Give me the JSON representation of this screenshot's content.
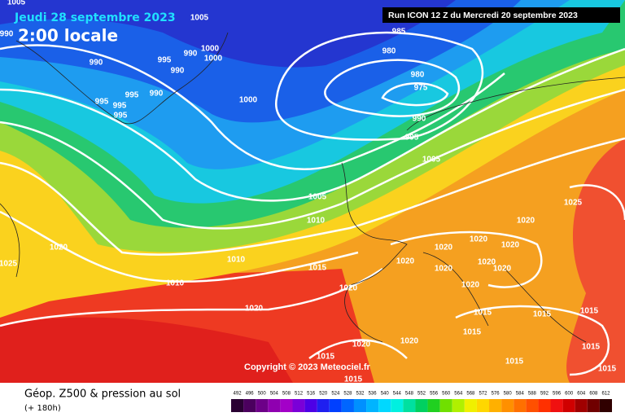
{
  "header": {
    "date": "Jeudi 28 septembre 2023",
    "time": "2:00 locale",
    "run": "Run ICON 12 Z du Mercredi 20 septembre 2023"
  },
  "copyright": "Copyright © 2023 Meteociel.fr",
  "footer": {
    "title": "Géop. Z500 & pression au sol",
    "lead": "(+ 180h)"
  },
  "isobar_labels": [
    "1005",
    "990",
    "1005",
    "990",
    "995",
    "990",
    "1000",
    "1000",
    "990",
    "995",
    "995",
    "995",
    "990",
    "995",
    "1000",
    "985",
    "980",
    "980",
    "975",
    "990",
    "995",
    "1005",
    "1005",
    "1010",
    "1020",
    "1025",
    "1010",
    "1015",
    "1010",
    "1020",
    "1020",
    "1020",
    "1020",
    "1020",
    "1020",
    "1020",
    "1025",
    "1020",
    "1020",
    "1020",
    "1020",
    "1015",
    "1015",
    "1015",
    "1015",
    "1020",
    "1020",
    "1015",
    "1015",
    "1015",
    "1015",
    "1015"
  ],
  "scale": {
    "values": [
      492,
      496,
      500,
      504,
      508,
      512,
      516,
      520,
      524,
      528,
      532,
      536,
      540,
      544,
      548,
      552,
      556,
      560,
      564,
      568,
      572,
      576,
      580,
      584,
      588,
      592,
      596,
      600,
      604,
      608,
      612
    ],
    "colors": [
      "#2a0033",
      "#4b005e",
      "#6d0088",
      "#8f00b0",
      "#a300c8",
      "#7a00d8",
      "#4d00e6",
      "#1f1ff0",
      "#0040ff",
      "#0066ff",
      "#0090ff",
      "#00b4ff",
      "#00d8ff",
      "#00f0e0",
      "#00e0a0",
      "#00d060",
      "#20d020",
      "#70e000",
      "#b0f000",
      "#f0f000",
      "#ffd700",
      "#ffb000",
      "#ff9000",
      "#ff7000",
      "#ff5000",
      "#ff3000",
      "#f01010",
      "#d00000",
      "#a00000",
      "#700000",
      "#300000"
    ]
  }
}
